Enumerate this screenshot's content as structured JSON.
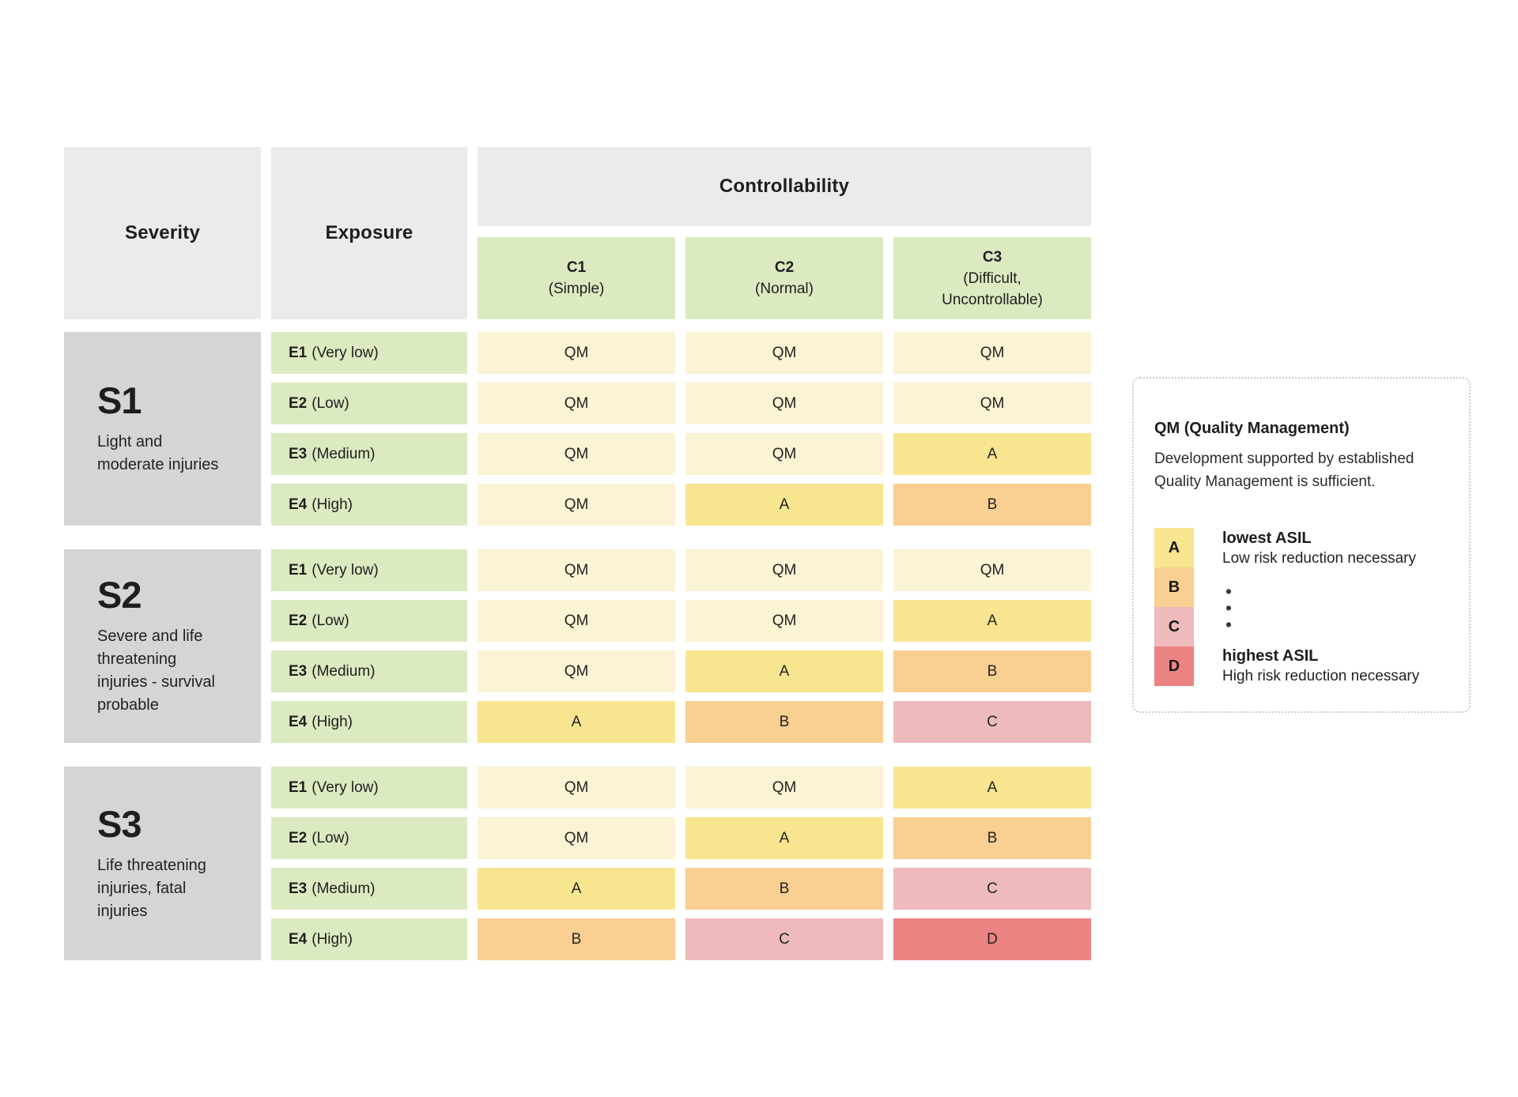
{
  "palette": {
    "header-gray": "#ebebeb",
    "severity-gray": "#d5d5d5",
    "green": "#dbeac0",
    "qm": "#faf3d4",
    "asil-a": "#f8e590",
    "asil-b": "#f9cf92",
    "asil-c": "#eebabc",
    "asil-d": "#ec8383",
    "legend-border": "#cbcbcb"
  },
  "table": {
    "severity_header": "Severity",
    "exposure_header": "Exposure",
    "controllability_header": "Controllability",
    "columns": [
      {
        "code": "C1",
        "sub": "(Simple)"
      },
      {
        "code": "C2",
        "sub": "(Normal)"
      },
      {
        "code": "C3",
        "sub": "(Difficult,\nUncontrollable)"
      }
    ],
    "blocks": [
      {
        "code": "S1",
        "description": "Light and\nmoderate injuries",
        "rows": [
          {
            "exposure": "E1",
            "exposure_sub": "(Very low)",
            "cells": [
              {
                "value": "QM",
                "level": "qm"
              },
              {
                "value": "QM",
                "level": "qm"
              },
              {
                "value": "QM",
                "level": "qm"
              }
            ]
          },
          {
            "exposure": "E2",
            "exposure_sub": "(Low)",
            "cells": [
              {
                "value": "QM",
                "level": "qm"
              },
              {
                "value": "QM",
                "level": "qm"
              },
              {
                "value": "QM",
                "level": "qm"
              }
            ]
          },
          {
            "exposure": "E3",
            "exposure_sub": "(Medium)",
            "cells": [
              {
                "value": "QM",
                "level": "qm"
              },
              {
                "value": "QM",
                "level": "qm"
              },
              {
                "value": "A",
                "level": "a"
              }
            ]
          },
          {
            "exposure": "E4",
            "exposure_sub": "(High)",
            "cells": [
              {
                "value": "QM",
                "level": "qm"
              },
              {
                "value": "A",
                "level": "a"
              },
              {
                "value": "B",
                "level": "b"
              }
            ]
          }
        ]
      },
      {
        "code": "S2",
        "description": "Severe and life\nthreatening\ninjuries - survival\nprobable",
        "rows": [
          {
            "exposure": "E1",
            "exposure_sub": "(Very low)",
            "cells": [
              {
                "value": "QM",
                "level": "qm"
              },
              {
                "value": "QM",
                "level": "qm"
              },
              {
                "value": "QM",
                "level": "qm"
              }
            ]
          },
          {
            "exposure": "E2",
            "exposure_sub": "(Low)",
            "cells": [
              {
                "value": "QM",
                "level": "qm"
              },
              {
                "value": "QM",
                "level": "qm"
              },
              {
                "value": "A",
                "level": "a"
              }
            ]
          },
          {
            "exposure": "E3",
            "exposure_sub": "(Medium)",
            "cells": [
              {
                "value": "QM",
                "level": "qm"
              },
              {
                "value": "A",
                "level": "a"
              },
              {
                "value": "B",
                "level": "b"
              }
            ]
          },
          {
            "exposure": "E4",
            "exposure_sub": "(High)",
            "cells": [
              {
                "value": "A",
                "level": "a"
              },
              {
                "value": "B",
                "level": "b"
              },
              {
                "value": "C",
                "level": "c"
              }
            ]
          }
        ]
      },
      {
        "code": "S3",
        "description": "Life threatening\ninjuries, fatal\ninjuries",
        "rows": [
          {
            "exposure": "E1",
            "exposure_sub": "(Very low)",
            "cells": [
              {
                "value": "QM",
                "level": "qm"
              },
              {
                "value": "QM",
                "level": "qm"
              },
              {
                "value": "A",
                "level": "a"
              }
            ]
          },
          {
            "exposure": "E2",
            "exposure_sub": "(Low)",
            "cells": [
              {
                "value": "QM",
                "level": "qm"
              },
              {
                "value": "A",
                "level": "a"
              },
              {
                "value": "B",
                "level": "b"
              }
            ]
          },
          {
            "exposure": "E3",
            "exposure_sub": "(Medium)",
            "cells": [
              {
                "value": "A",
                "level": "a"
              },
              {
                "value": "B",
                "level": "b"
              },
              {
                "value": "C",
                "level": "c"
              }
            ]
          },
          {
            "exposure": "E4",
            "exposure_sub": "(High)",
            "cells": [
              {
                "value": "B",
                "level": "b"
              },
              {
                "value": "C",
                "level": "c"
              },
              {
                "value": "D",
                "level": "d"
              }
            ]
          }
        ]
      }
    ]
  },
  "legend": {
    "title": "QM (Quality Management)",
    "body": "Development supported by established Quality Management is sufficient.",
    "scale": [
      {
        "label": "A",
        "level": "a"
      },
      {
        "label": "B",
        "level": "b"
      },
      {
        "label": "C",
        "level": "c"
      },
      {
        "label": "D",
        "level": "d"
      }
    ],
    "lowest_title": "lowest ASIL",
    "lowest_sub": "Low risk reduction necessary",
    "highest_title": "highest ASIL",
    "highest_sub": "High risk reduction necessary",
    "dots": [
      "•",
      "•",
      "•"
    ]
  }
}
